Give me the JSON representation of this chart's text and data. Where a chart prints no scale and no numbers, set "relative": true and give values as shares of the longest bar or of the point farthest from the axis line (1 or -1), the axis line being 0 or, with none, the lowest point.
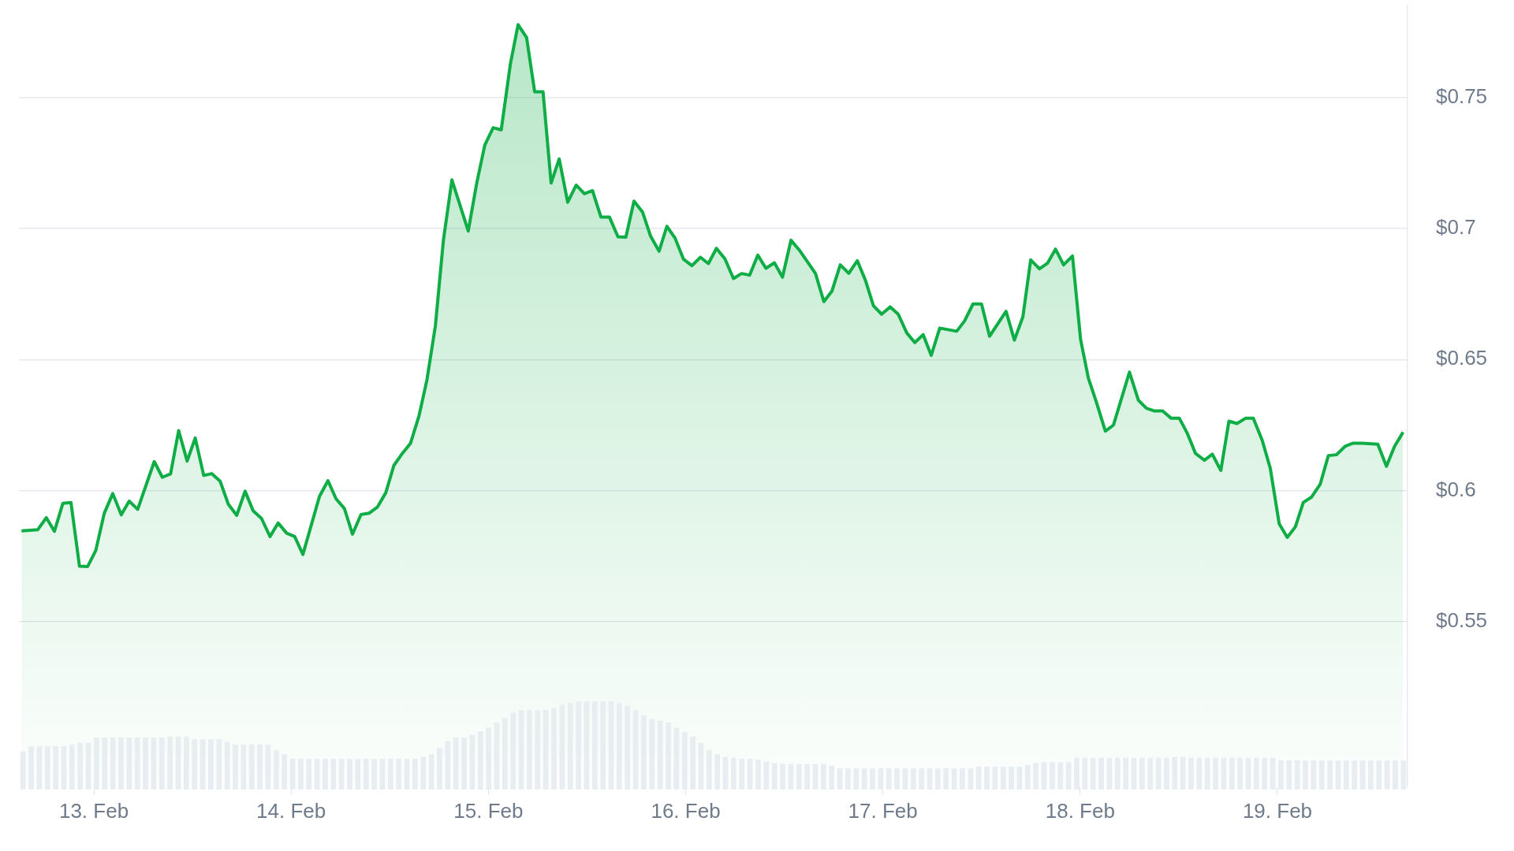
{
  "chart_data": [
    {
      "type": "area",
      "color": "#0ead45",
      "grid": "y",
      "xlim": [
        "--02-12T14:53",
        "--02-19T15:50"
      ],
      "xticks": [
        {
          "value": "--02-13",
          "label": "13. Feb"
        },
        {
          "value": "--02-14",
          "label": "14. Feb"
        },
        {
          "value": "--02-15",
          "label": "15. Feb"
        },
        {
          "value": "--02-16",
          "label": "16. Feb"
        },
        {
          "value": "--02-17",
          "label": "17. Feb"
        },
        {
          "value": "--02-18",
          "label": "18. Feb"
        },
        {
          "value": "--02-19",
          "label": "19. Feb"
        }
      ],
      "ylim": [
        0.487,
        0.785
      ],
      "yticks": [
        {
          "value": 0.55,
          "label": "$0.55"
        },
        {
          "value": 0.6,
          "label": "$0.6"
        },
        {
          "value": 0.65,
          "label": "$0.65"
        },
        {
          "value": 0.7,
          "label": "$0.7"
        },
        {
          "value": 0.75,
          "label": "$0.75"
        }
      ],
      "x": [
        "--02-12T15:12",
        "--02-12T17:10",
        "--02-12T18:13",
        "--02-12T19:12",
        "--02-12T20:14",
        "--02-12T21:13",
        "--02-12T22:15",
        "--02-12T23:15",
        "--02-13T00:14",
        "--02-13T01:16",
        "--02-13T02:18",
        "--02-13T03:20",
        "--02-13T04:18",
        "--02-13T05:20",
        "--02-13T07:21",
        "--02-13T08:20",
        "--02-13T09:20",
        "--02-13T10:19",
        "--02-13T11:21",
        "--02-13T12:20",
        "--02-13T13:22",
        "--02-13T14:20",
        "--02-13T15:22",
        "--02-13T16:21",
        "--02-13T17:23",
        "--02-13T18:24",
        "--02-13T19:23",
        "--02-13T20:24",
        "--02-13T21:26",
        "--02-13T22:25",
        "--02-13T23:27",
        "--02-14T00:26",
        "--02-14T01:26",
        "--02-14T03:27",
        "--02-14T04:29",
        "--02-14T05:28",
        "--02-14T06:29",
        "--02-14T07:28",
        "--02-14T08:30",
        "--02-14T09:29",
        "--02-14T10:31",
        "--02-14T11:31",
        "--02-14T12:30",
        "--02-14T13:32",
        "--02-14T14:31",
        "--02-14T15:33",
        "--02-14T16:31",
        "--02-14T17:33",
        "--02-14T18:32",
        "--02-14T19:34",
        "--02-14T21:33",
        "--02-14T22:35",
        "--02-14T23:34",
        "--02-15T00:35",
        "--02-15T01:34",
        "--02-15T02:41",
        "--02-15T03:37",
        "--02-15T04:39",
        "--02-15T05:38",
        "--02-15T06:39",
        "--02-15T07:38",
        "--02-15T08:37",
        "--02-15T09:39",
        "--02-15T10:41",
        "--02-15T11:41",
        "--02-15T12:40",
        "--02-15T13:42",
        "--02-15T14:44",
        "--02-15T15:46",
        "--02-15T16:44",
        "--02-15T17:43",
        "--02-15T18:45",
        "--02-15T19:44",
        "--02-15T20:46",
        "--02-15T21:43",
        "--02-15T22:42",
        "--02-15T23:44",
        "--02-16T00:46",
        "--02-16T01:48",
        "--02-16T02:46",
        "--02-16T03:45",
        "--02-16T04:47",
        "--02-16T05:49",
        "--02-16T06:48",
        "--02-16T07:47",
        "--02-16T08:47",
        "--02-16T09:46",
        "--02-16T10:48",
        "--02-16T11:47",
        "--02-16T12:49",
        "--02-16T13:49",
        "--02-16T14:48",
        "--02-16T15:48",
        "--02-16T16:49",
        "--02-16T17:48",
        "--02-16T18:49",
        "--02-16T19:51",
        "--02-16T20:53",
        "--02-16T21:52",
        "--02-16T22:51",
        "--02-16T23:51",
        "--02-17T00:53",
        "--02-17T01:52",
        "--02-17T02:54",
        "--02-17T03:53",
        "--02-17T04:54",
        "--02-17T05:53",
        "--02-17T06:55",
        "--02-17T08:59",
        "--02-17T09:56",
        "--02-17T10:58",
        "--02-17T12:00",
        "--02-17T12:59",
        "--02-17T14:01",
        "--02-17T14:59",
        "--02-17T16:00",
        "--02-17T17:02",
        "--02-17T17:59",
        "--02-17T19:03",
        "--02-17T20:01",
        "--02-17T21:00",
        "--02-17T21:59",
        "--02-17T23:04",
        "--02-18T00:03",
        "--02-18T01:00",
        "--02-18T01:59",
        "--02-18T03:04",
        "--02-18T04:03",
        "--02-18T06:00",
        "--02-18T07:05",
        "--02-18T08:04",
        "--02-18T09:03",
        "--02-18T10:02",
        "--02-18T11:05",
        "--02-18T12:04",
        "--02-18T13:03",
        "--02-18T14:02",
        "--02-18T15:07",
        "--02-18T16:05",
        "--02-18T17:07",
        "--02-18T18:06",
        "--02-18T19:05",
        "--02-18T20:07",
        "--02-18T21:04",
        "--02-18T22:09",
        "--02-18T23:08",
        "--02-19T00:13",
        "--02-19T01:12",
        "--02-19T02:11",
        "--02-19T03:09",
        "--02-19T04:08",
        "--02-19T05:12",
        "--02-19T06:12",
        "--02-19T07:11",
        "--02-19T08:14",
        "--02-19T09:13",
        "--02-19T10:18",
        "--02-19T12:13",
        "--02-19T13:16",
        "--02-19T14:15",
        "--02-19T15:17"
      ],
      "values": [
        0.5847,
        0.5851,
        0.5897,
        0.5845,
        0.5952,
        0.5955,
        0.5712,
        0.5711,
        0.5772,
        0.5914,
        0.5989,
        0.5908,
        0.596,
        0.5929,
        0.6111,
        0.6051,
        0.6064,
        0.6229,
        0.6113,
        0.6201,
        0.6058,
        0.6065,
        0.6036,
        0.5949,
        0.5906,
        0.5998,
        0.5923,
        0.5894,
        0.5825,
        0.5877,
        0.5838,
        0.5825,
        0.5757,
        0.5978,
        0.6038,
        0.5969,
        0.5932,
        0.5834,
        0.5909,
        0.5914,
        0.5938,
        0.5992,
        0.6096,
        0.6142,
        0.618,
        0.6284,
        0.6421,
        0.6628,
        0.6956,
        0.7185,
        0.699,
        0.7173,
        0.7318,
        0.7384,
        0.7376,
        0.7628,
        0.7777,
        0.7728,
        0.7521,
        0.7521,
        0.7173,
        0.7265,
        0.71,
        0.7165,
        0.7132,
        0.7144,
        0.7043,
        0.7043,
        0.6968,
        0.6967,
        0.7104,
        0.7063,
        0.6971,
        0.6913,
        0.7008,
        0.6964,
        0.6883,
        0.6858,
        0.689,
        0.6866,
        0.6924,
        0.6884,
        0.6809,
        0.6828,
        0.6822,
        0.6898,
        0.6848,
        0.6869,
        0.6814,
        0.6955,
        0.6918,
        0.6874,
        0.6828,
        0.6721,
        0.6761,
        0.6861,
        0.6829,
        0.6877,
        0.6803,
        0.6705,
        0.6673,
        0.6701,
        0.6673,
        0.6602,
        0.6565,
        0.6595,
        0.6516,
        0.662,
        0.6608,
        0.6647,
        0.6712,
        0.6712,
        0.6589,
        0.6638,
        0.6684,
        0.6574,
        0.6663,
        0.688,
        0.6846,
        0.6867,
        0.6921,
        0.6861,
        0.6895,
        0.6577,
        0.6429,
        0.6337,
        0.6227,
        0.625,
        0.6452,
        0.6345,
        0.6314,
        0.6304,
        0.6304,
        0.6276,
        0.6276,
        0.6218,
        0.6142,
        0.6116,
        0.6139,
        0.6077,
        0.6265,
        0.6256,
        0.6276,
        0.6276,
        0.6192,
        0.6085,
        0.5874,
        0.5822,
        0.5862,
        0.5955,
        0.5975,
        0.6024,
        0.6134,
        0.6137,
        0.6169,
        0.6181,
        0.6181,
        0.6177,
        0.6093,
        0.6169,
        0.6223
      ]
    },
    {
      "type": "bar",
      "color": "#e8edf2",
      "relative": true,
      "categories": [
        null,
        null,
        null,
        null,
        null,
        null,
        null,
        null,
        null,
        null,
        null,
        null,
        null,
        null,
        null,
        null,
        null,
        null,
        null,
        null,
        null,
        null,
        null,
        null,
        null,
        null,
        null,
        null,
        null,
        null,
        null,
        null,
        null,
        null,
        null,
        null,
        null,
        null,
        null,
        null,
        null,
        null,
        null,
        null,
        null,
        null,
        null,
        null,
        null,
        null,
        null,
        null,
        null,
        null,
        null,
        null,
        null,
        null,
        null,
        null,
        null,
        null,
        null,
        null,
        null,
        null,
        null,
        null,
        null,
        null,
        null,
        null,
        null,
        null,
        null,
        null,
        null,
        null,
        null,
        null,
        null,
        null,
        null,
        null,
        null,
        null,
        null,
        null,
        null,
        null,
        null,
        null,
        null,
        null,
        null,
        null,
        null,
        null,
        null,
        null,
        null,
        null,
        null,
        null,
        null,
        null,
        null,
        null,
        null,
        null,
        null,
        null,
        null,
        null,
        null,
        null,
        null,
        null,
        null,
        null,
        null,
        null,
        null,
        null,
        null,
        null,
        null,
        null,
        null,
        null,
        null,
        null,
        null,
        null,
        null,
        null,
        null,
        null,
        null,
        null,
        null,
        null,
        null,
        null,
        null,
        null,
        null,
        null,
        null,
        null,
        null,
        null,
        null,
        null,
        null,
        null,
        null,
        null,
        null,
        null,
        null,
        null,
        null,
        null,
        null,
        null,
        null,
        null,
        null,
        null
      ],
      "values": [
        0.43,
        0.49,
        0.49,
        0.49,
        0.49,
        0.49,
        0.51,
        0.53,
        0.53,
        0.59,
        0.59,
        0.59,
        0.59,
        0.59,
        0.59,
        0.59,
        0.59,
        0.59,
        0.6,
        0.6,
        0.6,
        0.57,
        0.57,
        0.57,
        0.57,
        0.54,
        0.51,
        0.51,
        0.51,
        0.51,
        0.51,
        0.45,
        0.4,
        0.35,
        0.35,
        0.35,
        0.35,
        0.35,
        0.35,
        0.35,
        0.35,
        0.35,
        0.35,
        0.35,
        0.35,
        0.35,
        0.35,
        0.35,
        0.35,
        0.37,
        0.4,
        0.47,
        0.55,
        0.59,
        0.59,
        0.62,
        0.66,
        0.7,
        0.76,
        0.81,
        0.87,
        0.9,
        0.9,
        0.9,
        0.9,
        0.92,
        0.96,
        0.98,
        1,
        1,
        1,
        1,
        1,
        0.98,
        0.95,
        0.9,
        0.84,
        0.8,
        0.78,
        0.76,
        0.7,
        0.65,
        0.6,
        0.53,
        0.45,
        0.4,
        0.37,
        0.36,
        0.35,
        0.35,
        0.34,
        0.32,
        0.3,
        0.29,
        0.29,
        0.29,
        0.29,
        0.29,
        0.29,
        0.27,
        0.24,
        0.24,
        0.24,
        0.24,
        0.24,
        0.24,
        0.24,
        0.24,
        0.24,
        0.24,
        0.24,
        0.24,
        0.24,
        0.24,
        0.24,
        0.24,
        0.24,
        0.26,
        0.26,
        0.26,
        0.26,
        0.26,
        0.26,
        0.28,
        0.3,
        0.31,
        0.31,
        0.31,
        0.31,
        0.36,
        0.36,
        0.36,
        0.36,
        0.36,
        0.36,
        0.36,
        0.36,
        0.36,
        0.36,
        0.36,
        0.36,
        0.37,
        0.37,
        0.36,
        0.36,
        0.36,
        0.36,
        0.36,
        0.36,
        0.36,
        0.36,
        0.36,
        0.36,
        0.36,
        0.33,
        0.33,
        0.33,
        0.33,
        0.33,
        0.33,
        0.33,
        0.33,
        0.33,
        0.33,
        0.33,
        0.33,
        0.33,
        0.33,
        0.33,
        0.33
      ]
    }
  ]
}
